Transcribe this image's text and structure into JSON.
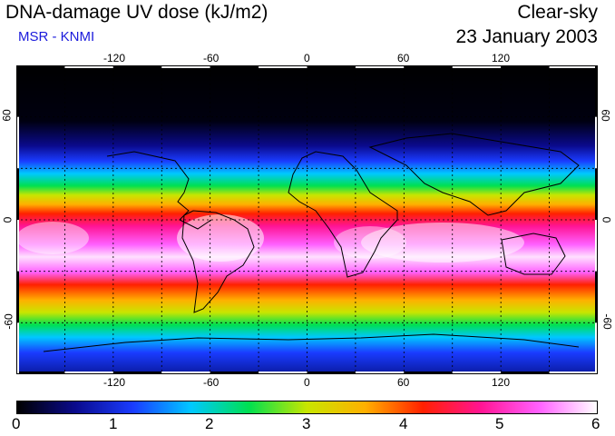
{
  "header": {
    "title": "DNA-damage UV dose (kJ/m2)",
    "subtitle": "MSR - KNMI",
    "condition": "Clear-sky",
    "date": "23 January 2003"
  },
  "map": {
    "longitude_ticks": [
      "-120",
      "-60",
      "0",
      "60",
      "120"
    ],
    "latitude_ticks": [
      "60",
      "0",
      "-60"
    ],
    "longitude_values": [
      -120,
      -60,
      0,
      60,
      120
    ],
    "latitude_values": [
      60,
      0,
      -60
    ],
    "lon_range": [
      -180,
      180
    ],
    "lat_range": [
      -90,
      90
    ],
    "grid_style": "dashed"
  },
  "colorbar": {
    "labels": [
      "0",
      "1",
      "2",
      "3",
      "4",
      "5",
      "6"
    ],
    "range": [
      0,
      6
    ],
    "stops": [
      "#000000",
      "#0a0a8c",
      "#1a3cff",
      "#00c8ff",
      "#00e050",
      "#c8e600",
      "#ffb000",
      "#ff2000",
      "#ff1493",
      "#ff60ff",
      "#ffffff"
    ]
  },
  "colors": {
    "subtitle": "#1a1adc",
    "high_band": "#ffffff",
    "low_band": "#000000"
  }
}
